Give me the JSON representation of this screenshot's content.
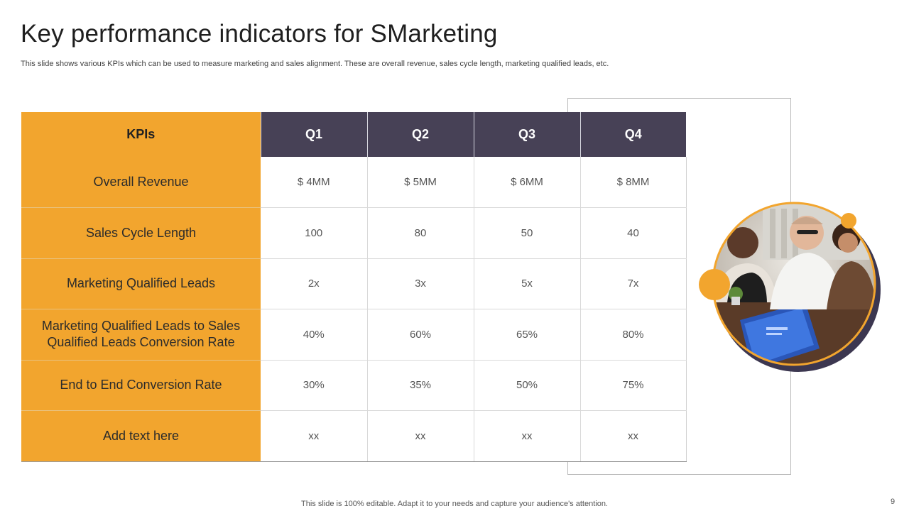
{
  "slide": {
    "title": "Key performance indicators for SMarketing",
    "subtitle": "This slide shows various KPIs which can be used to measure marketing and sales alignment. These are overall revenue, sales cycle length, marketing qualified leads, etc.",
    "footer": "This slide is 100% editable. Adapt it to your needs and capture your audience's attention.",
    "page_number": "9"
  },
  "table": {
    "headers": [
      "KPIs",
      "Q1",
      "Q2",
      "Q3",
      "Q4"
    ],
    "rows": [
      {
        "kpi": "Overall Revenue",
        "values": [
          "$ 4MM",
          "$ 5MM",
          "$ 6MM",
          "$ 8MM"
        ]
      },
      {
        "kpi": "Sales Cycle Length",
        "values": [
          "100",
          "80",
          "50",
          "40"
        ]
      },
      {
        "kpi": "Marketing Qualified Leads",
        "values": [
          "2x",
          "3x",
          "5x",
          "7x"
        ]
      },
      {
        "kpi": "Marketing Qualified Leads to Sales Qualified Leads Conversion Rate",
        "values": [
          "40%",
          "60%",
          "65%",
          "80%"
        ]
      },
      {
        "kpi": "End to End Conversion Rate",
        "values": [
          "30%",
          "35%",
          "50%",
          "75%"
        ]
      },
      {
        "kpi": "Add text here",
        "values": [
          "xx",
          "xx",
          "xx",
          "xx"
        ]
      }
    ]
  },
  "colors": {
    "accent_orange": "#f2a52e",
    "header_purple": "#474156"
  },
  "image": {
    "icon": "team-meeting-photo"
  }
}
